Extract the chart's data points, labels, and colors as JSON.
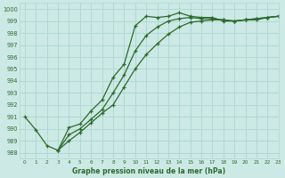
{
  "title": "Graphe pression niveau de la mer (hPa)",
  "bg_color": "#cce9e5",
  "grid_color": "#b0d8d2",
  "line_color": "#2d6a2d",
  "xlim": [
    -0.5,
    23
  ],
  "ylim": [
    987.5,
    1000.5
  ],
  "yticks": [
    988,
    989,
    990,
    991,
    992,
    993,
    994,
    995,
    996,
    997,
    998,
    999,
    1000
  ],
  "xticks": [
    0,
    1,
    2,
    3,
    4,
    5,
    6,
    7,
    8,
    9,
    10,
    11,
    12,
    13,
    14,
    15,
    16,
    17,
    18,
    19,
    20,
    21,
    22,
    23
  ],
  "series": [
    {
      "x": [
        0,
        1,
        2,
        3,
        4,
        5,
        6,
        7,
        8,
        9,
        10,
        11,
        12,
        13,
        14,
        15,
        16,
        17,
        18,
        19,
        20,
        21,
        22,
        23
      ],
      "y": [
        991.0,
        989.9,
        988.6,
        988.2,
        990.1,
        990.4,
        991.5,
        992.4,
        994.3,
        995.4,
        998.6,
        999.4,
        999.3,
        999.4,
        999.7,
        999.4,
        999.3,
        999.3,
        999.0,
        999.0,
        999.1,
        999.1,
        999.3,
        999.4
      ]
    },
    {
      "x": [
        3,
        4,
        5,
        6,
        7,
        8,
        9,
        10,
        11,
        12,
        13,
        14,
        15,
        16,
        17,
        18,
        19,
        20,
        21,
        22,
        23
      ],
      "y": [
        988.2,
        989.5,
        990.0,
        990.8,
        991.6,
        993.0,
        994.5,
        996.5,
        997.8,
        998.5,
        999.0,
        999.2,
        999.3,
        999.2,
        999.2,
        999.1,
        999.0,
        999.1,
        999.2,
        999.3,
        999.4
      ]
    },
    {
      "x": [
        3,
        4,
        5,
        6,
        7,
        8,
        9,
        10,
        11,
        12,
        13,
        14,
        15,
        16,
        17,
        18,
        19,
        20,
        21,
        22,
        23
      ],
      "y": [
        988.2,
        989.0,
        989.7,
        990.5,
        991.3,
        992.0,
        993.5,
        995.0,
        996.2,
        997.1,
        997.9,
        998.5,
        998.9,
        999.0,
        999.1,
        999.1,
        999.0,
        999.1,
        999.2,
        999.3,
        999.4
      ]
    }
  ]
}
